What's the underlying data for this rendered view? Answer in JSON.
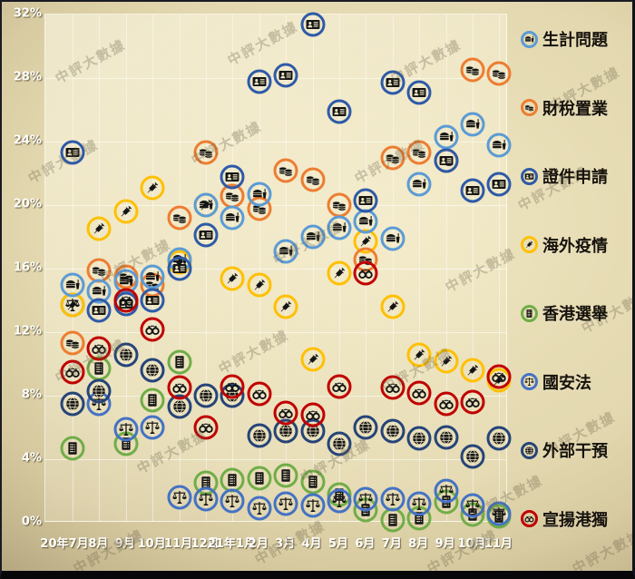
{
  "watermark": "中評大數據",
  "chart_data": {
    "type": "scatter",
    "title": "",
    "x_categories": [
      "20年7月",
      "8月",
      "9月",
      "10月",
      "11月",
      "12月",
      "21年1月",
      "2月",
      "3月",
      "4月",
      "5月",
      "6月",
      "7月",
      "8月",
      "9月",
      "10月",
      "11月"
    ],
    "y_axis": {
      "min": 0,
      "max": 32,
      "step": 4,
      "unit": "%",
      "tick_labels": [
        "0%",
        "4%",
        "8%",
        "12%",
        "16%",
        "20%",
        "24%",
        "28%",
        "32%"
      ]
    },
    "grid": true,
    "legend_position": "right",
    "series": [
      {
        "name": "生計問題",
        "color": "#5B9BD5",
        "icon": "burger-icon",
        "values": [
          15.0,
          14.6,
          15.2,
          15.5,
          16.6,
          20.0,
          19.2,
          20.7,
          17.1,
          18.0,
          18.6,
          19.0,
          17.9,
          21.3,
          24.3,
          25.1,
          23.8
        ]
      },
      {
        "name": "財稅置業",
        "color": "#ED7D31",
        "icon": "coins-icon",
        "values": [
          11.3,
          15.9,
          15.5,
          15.0,
          19.2,
          23.3,
          20.6,
          19.8,
          22.2,
          21.6,
          20.0,
          16.6,
          23.0,
          23.3,
          22.8,
          28.5,
          28.3
        ]
      },
      {
        "name": "證件申請",
        "color": "#2E5AA8",
        "icon": "idcard-icon",
        "values": [
          23.3,
          13.4,
          13.8,
          14.0,
          16.0,
          18.1,
          21.8,
          27.8,
          28.2,
          31.4,
          25.9,
          20.3,
          27.7,
          27.1,
          22.8,
          20.9,
          21.3
        ]
      },
      {
        "name": "海外疫情",
        "color": "#FFC000",
        "icon": "syringe-icon",
        "values": [
          13.7,
          18.5,
          19.6,
          21.1,
          16.4,
          20.0,
          15.4,
          15.0,
          13.6,
          10.3,
          15.7,
          17.7,
          13.6,
          10.6,
          10.2,
          9.6,
          9.0
        ]
      },
      {
        "name": "香港選舉",
        "color": "#70AD47",
        "icon": "ballot-icon",
        "values": [
          4.7,
          9.7,
          5.0,
          7.7,
          10.1,
          2.5,
          2.7,
          2.8,
          3.0,
          2.6,
          1.8,
          0.8,
          0.2,
          0.3,
          1.3,
          0.5,
          0.4
        ]
      },
      {
        "name": "國安法",
        "color": "#4472C4",
        "icon": "scales-icon",
        "values": [
          13.7,
          7.5,
          5.9,
          6.0,
          1.6,
          1.5,
          1.4,
          0.9,
          1.2,
          1.1,
          1.4,
          1.5,
          1.5,
          1.2,
          2.0,
          1.1,
          0.6
        ]
      },
      {
        "name": "外部干預",
        "color": "#264478",
        "icon": "globe-icon",
        "values": [
          7.5,
          8.3,
          10.6,
          9.6,
          7.3,
          8.0,
          8.0,
          5.5,
          5.8,
          5.8,
          5.0,
          6.0,
          5.8,
          5.3,
          5.4,
          4.2,
          5.3
        ]
      },
      {
        "name": "宣揚港獨",
        "color": "#C00000",
        "icon": "handcuffs-icon",
        "values": [
          9.5,
          11.0,
          14.0,
          12.2,
          8.5,
          6.0,
          8.6,
          8.1,
          6.9,
          6.8,
          8.6,
          15.7,
          8.5,
          8.2,
          7.5,
          7.6,
          9.2
        ]
      }
    ]
  }
}
